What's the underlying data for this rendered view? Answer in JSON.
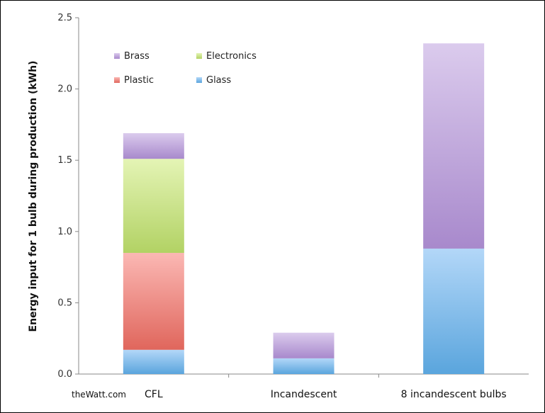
{
  "chart_data": {
    "type": "bar",
    "stacked": true,
    "categories": [
      "CFL",
      "Incandescent",
      "8 incandescent bulbs"
    ],
    "series": [
      {
        "name": "Glass",
        "values": [
          0.17,
          0.11,
          0.88
        ],
        "color_top": "#b3d7f8",
        "color_bottom": "#5aa5dd"
      },
      {
        "name": "Plastic",
        "values": [
          0.68,
          0.0,
          0.0
        ],
        "color_top": "#fbb8b4",
        "color_bottom": "#e0665c"
      },
      {
        "name": "Electronics",
        "values": [
          0.66,
          0.0,
          0.0
        ],
        "color_top": "#e4f4b5",
        "color_bottom": "#b2d264"
      },
      {
        "name": "Brass",
        "values": [
          0.18,
          0.18,
          1.44
        ],
        "color_top": "#dbcbed",
        "color_bottom": "#a889cc"
      }
    ],
    "legend_order": [
      "Brass",
      "Electronics",
      "Plastic",
      "Glass"
    ],
    "legend_placement": "top-left",
    "ylabel": "Energy input for 1 bulb during production (kWh)",
    "xlabel": "",
    "ylim": [
      0,
      2.5
    ],
    "yticks": [
      "0.0",
      "0.5",
      "1.0",
      "1.5",
      "2.0",
      "2.5"
    ],
    "grid": false
  },
  "credit": "theWatt.com"
}
